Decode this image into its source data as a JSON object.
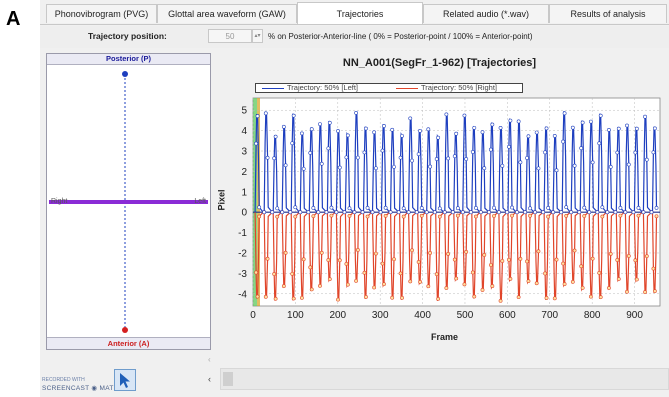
{
  "panel_letter": "A",
  "tabs": [
    {
      "label": "Phonovibrogram (PVG)",
      "active": false
    },
    {
      "label": "Glottal area waveform (GAW)",
      "active": false
    },
    {
      "label": "Trajectories",
      "active": true
    },
    {
      "label": "Related audio (*.wav)",
      "active": false
    },
    {
      "label": "Results of analysis",
      "active": false
    }
  ],
  "toolbar": {
    "trajectory_label": "Trajectory position:",
    "trajectory_value": "50",
    "spin_icon": "spinner-arrows-icon",
    "description": "% on Posterior-Anterior-line  ( 0% = Posterior-point / 100% = Anterior-point)"
  },
  "left_panel": {
    "top_label": "Posterior (P)",
    "bottom_label": "Anterior (A)",
    "left_label": "Right",
    "right_label": "Left",
    "colors": {
      "posterior": "#1e3fbf",
      "anterior": "#d42020",
      "midline": "#8a2bd6"
    }
  },
  "chart_data": {
    "type": "line",
    "title": "NN_A001(SegFr_1-962) [Trajectories]",
    "xlabel": "Frame",
    "ylabel": "Pixel",
    "xlim": [
      0,
      960
    ],
    "ylim": [
      -4.6,
      5.6
    ],
    "xticks": [
      0,
      100,
      200,
      300,
      400,
      500,
      600,
      700,
      800,
      900
    ],
    "yticks": [
      -4,
      -3,
      -2,
      -1,
      0,
      1,
      2,
      3,
      4,
      5
    ],
    "grid": true,
    "legend_position": "top-left",
    "cycles": 45,
    "cycle_period_frames": 21.3,
    "series": [
      {
        "name": "Trajectory: 50% [Left]",
        "color": "#1e3fbf",
        "peak_approx": 4.5
      },
      {
        "name": "Trajectory: 50% [Right]",
        "color": "#e0452a",
        "trough_approx": -4.0
      }
    ]
  },
  "bottom": {
    "scroll_left_top": "‹",
    "scroll_left_bottom": "‹",
    "watermark_line1": "RECORDED WITH",
    "watermark_line2": "SCREENCAST ◉ MATIC"
  }
}
